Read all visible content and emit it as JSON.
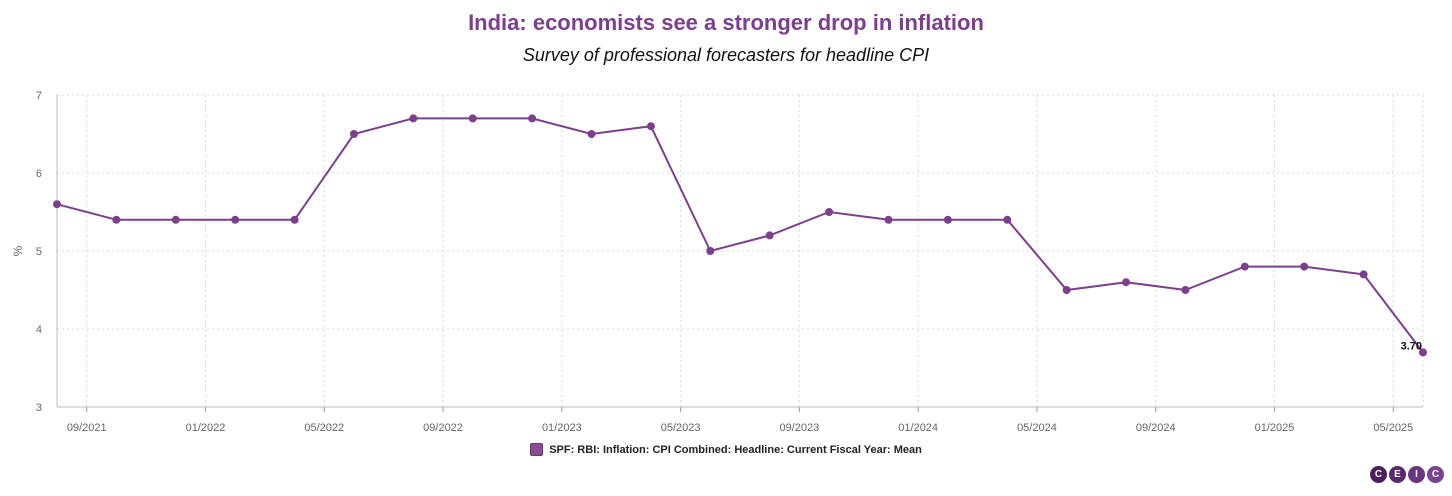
{
  "chart_data": {
    "type": "line",
    "title": "India: economists see a stronger drop in inflation",
    "subtitle": "Survey of professional forecasters for headline CPI",
    "ylabel": "%",
    "xlabel": "",
    "ylim": [
      3,
      7
    ],
    "yticks": [
      3,
      4,
      5,
      6,
      7
    ],
    "xlim": [
      "2021-08",
      "2025-06"
    ],
    "xticks": [
      "09/2021",
      "01/2022",
      "05/2022",
      "09/2022",
      "01/2023",
      "05/2023",
      "09/2023",
      "01/2024",
      "05/2024",
      "09/2024",
      "01/2025",
      "05/2025"
    ],
    "grid": true,
    "legend_position": "bottom-center",
    "series": [
      {
        "name": "SPF: RBI: Inflation: CPI Combined: Headline: Current Fiscal Year: Mean",
        "color": "#7b3f8c",
        "x": [
          "2021-08",
          "2021-10",
          "2021-12",
          "2022-02",
          "2022-04",
          "2022-06",
          "2022-08",
          "2022-10",
          "2022-12",
          "2023-02",
          "2023-04",
          "2023-06",
          "2023-08",
          "2023-10",
          "2023-12",
          "2024-02",
          "2024-04",
          "2024-06",
          "2024-08",
          "2024-10",
          "2024-12",
          "2025-02",
          "2025-04",
          "2025-06"
        ],
        "values": [
          5.6,
          5.4,
          5.4,
          5.4,
          5.4,
          6.5,
          6.7,
          6.7,
          6.7,
          6.5,
          6.6,
          5.0,
          5.2,
          5.5,
          5.4,
          5.4,
          5.4,
          4.5,
          4.6,
          4.5,
          4.8,
          4.8,
          4.7,
          3.7
        ]
      }
    ],
    "last_value_label": "3.70"
  },
  "brand": {
    "logo_letters": [
      "C",
      "E",
      "I",
      "C"
    ]
  }
}
